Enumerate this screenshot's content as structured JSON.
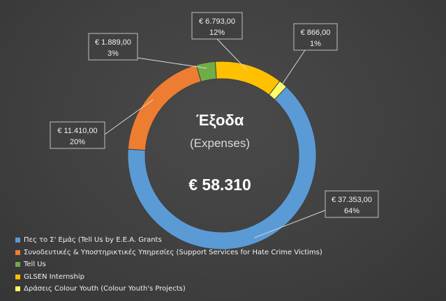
{
  "chart_data": {
    "type": "pie",
    "donut": true,
    "title": "Έξοδα",
    "subtitle": "(Expenses)",
    "total_label": "€ 58.310",
    "slices": [
      {
        "name": "Πες το Σ' Εμάς (Tell Us by E.E.A. Grants",
        "value": 37353.0,
        "value_label": "€ 37.353,00",
        "percent_label": "64%",
        "color": "#5b9bd5"
      },
      {
        "name": "Συνοδευτικές & Υποστηρικτικές Υπηρεσίες (Support Services for Hate Crime Victims)",
        "value": 11410.0,
        "value_label": "€ 11.410,00",
        "percent_label": "20%",
        "color": "#ed7d31"
      },
      {
        "name": "Tell Us",
        "value": 1889.0,
        "value_label": "€ 1.889,00",
        "percent_label": "3%",
        "color": "#70ad47"
      },
      {
        "name": "GLSEN Internship",
        "value": 6793.0,
        "value_label": "€  6.793,00",
        "percent_label": "12%",
        "color": "#ffc000"
      },
      {
        "name": "Δράσεις Colour Youth (Colour Youth's Projects)",
        "value": 866.0,
        "value_label": "€ 866,00",
        "percent_label": "1%",
        "color": "#ffff66"
      }
    ],
    "legend_position": "bottom-left"
  }
}
